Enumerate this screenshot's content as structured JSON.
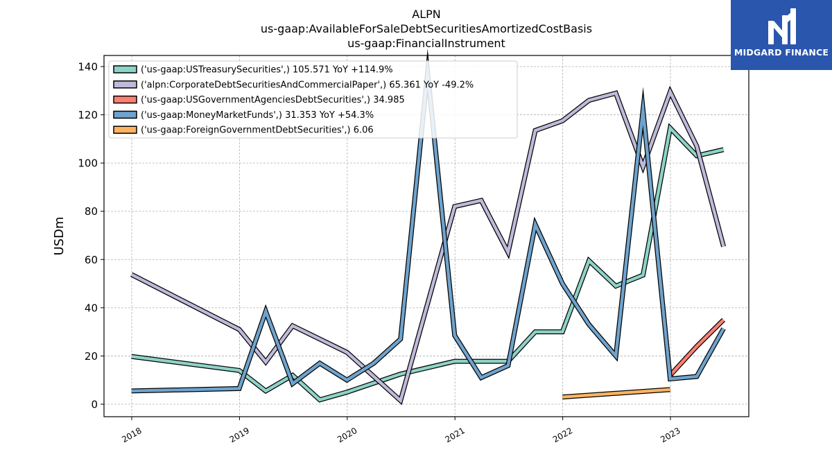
{
  "brand": {
    "name": "MIDGARD FINANCE",
    "color": "#2a56ad"
  },
  "chart_data": {
    "type": "line",
    "title_lines": [
      "ALPN",
      "us-gaap:AvailableForSaleDebtSecuritiesAmortizedCostBasis",
      "us-gaap:FinancialInstrument"
    ],
    "xlabel": "",
    "ylabel": "USDm",
    "ylim": [
      -5,
      140
    ],
    "yticks": [
      0,
      20,
      40,
      60,
      80,
      100,
      120,
      140
    ],
    "xticks": [
      "2018",
      "2019",
      "2020",
      "2021",
      "2022",
      "2023"
    ],
    "grid": true,
    "legend_position": "top-left",
    "series": [
      {
        "name": "('us-gaap:USTreasurySecurities',) 105.571 YoY +114.9%",
        "color": "#8dd3c7",
        "points": [
          [
            "2017-12-31",
            19.8
          ],
          [
            "2018-12-31",
            14.0
          ],
          [
            "2019-03-31",
            5.5
          ],
          [
            "2019-06-30",
            12.0
          ],
          [
            "2019-09-30",
            1.8
          ],
          [
            "2019-12-31",
            5.0
          ],
          [
            "2020-06-30",
            12.5
          ],
          [
            "2020-12-31",
            17.8
          ],
          [
            "2021-06-30",
            17.8
          ],
          [
            "2021-09-30",
            30.0
          ],
          [
            "2021-12-31",
            30.0
          ],
          [
            "2022-03-31",
            59.5
          ],
          [
            "2022-06-30",
            49.0
          ],
          [
            "2022-09-30",
            53.5
          ],
          [
            "2022-12-31",
            114.5
          ],
          [
            "2023-03-31",
            103.0
          ],
          [
            "2023-06-30",
            105.571
          ]
        ]
      },
      {
        "name": "('alpn:CorporateDebtSecuritiesAndCommercialPaper',) 65.361 YoY -49.2%",
        "color": "#bebada",
        "points": [
          [
            "2017-12-31",
            53.8
          ],
          [
            "2018-12-31",
            31.0
          ],
          [
            "2019-03-31",
            17.5
          ],
          [
            "2019-06-30",
            32.5
          ],
          [
            "2019-12-31",
            21.5
          ],
          [
            "2020-06-30",
            1.5
          ],
          [
            "2020-12-31",
            82.0
          ],
          [
            "2021-03-31",
            84.5
          ],
          [
            "2021-06-30",
            63.0
          ],
          [
            "2021-09-30",
            113.5
          ],
          [
            "2021-12-31",
            117.5
          ],
          [
            "2022-03-31",
            126.0
          ],
          [
            "2022-06-30",
            129.0
          ],
          [
            "2022-09-30",
            98.5
          ],
          [
            "2022-12-31",
            129.5
          ],
          [
            "2023-03-31",
            107.0
          ],
          [
            "2023-06-30",
            65.361
          ]
        ]
      },
      {
        "name": "('us-gaap:USGovernmentAgenciesDebtSecurities',) 34.985",
        "color": "#fb8072",
        "points": [
          [
            "2022-12-31",
            12.0
          ],
          [
            "2023-03-31",
            24.0
          ],
          [
            "2023-06-30",
            34.985
          ]
        ]
      },
      {
        "name": "('us-gaap:MoneyMarketFunds',) 31.353 YoY +54.3%",
        "color": "#6fa3cd",
        "points": [
          [
            "2017-12-31",
            5.5
          ],
          [
            "2018-12-31",
            6.5
          ],
          [
            "2019-03-31",
            38.5
          ],
          [
            "2019-06-30",
            8.5
          ],
          [
            "2019-09-30",
            17.0
          ],
          [
            "2019-12-31",
            10.0
          ],
          [
            "2020-03-31",
            17.0
          ],
          [
            "2020-06-30",
            27.0
          ],
          [
            "2020-09-30",
            137.5
          ],
          [
            "2020-12-31",
            28.5
          ],
          [
            "2021-03-31",
            11.0
          ],
          [
            "2021-06-30",
            16.0
          ],
          [
            "2021-09-30",
            74.5
          ],
          [
            "2021-12-31",
            50.0
          ],
          [
            "2022-03-31",
            33.0
          ],
          [
            "2022-06-30",
            20.0
          ],
          [
            "2022-09-30",
            122.0
          ],
          [
            "2022-12-31",
            10.5
          ],
          [
            "2023-03-31",
            11.5
          ],
          [
            "2023-06-30",
            31.353
          ]
        ]
      },
      {
        "name": "('us-gaap:ForeignGovernmentDebtSecurities',) 6.06",
        "color": "#fdb462",
        "points": [
          [
            "2021-12-31",
            3.0
          ],
          [
            "2022-12-31",
            6.06
          ]
        ]
      }
    ]
  }
}
